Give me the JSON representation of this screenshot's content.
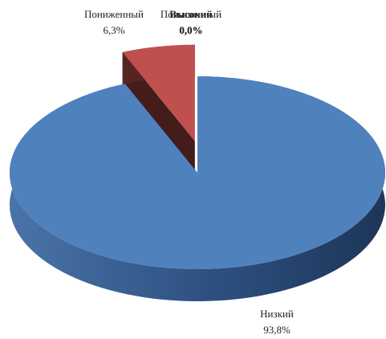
{
  "chart_data": {
    "type": "pie",
    "categories": [
      "Низкий",
      "Пониженный",
      "Повышенный",
      "Высокий"
    ],
    "values": [
      93.8,
      6.3,
      0,
      0
    ],
    "value_labels": [
      "93,8%",
      "6,3%",
      "0,0%",
      "0,0%"
    ],
    "colors": [
      "#4f81bd",
      "#c0504d",
      "#9bbb59",
      "#8064a2"
    ]
  }
}
